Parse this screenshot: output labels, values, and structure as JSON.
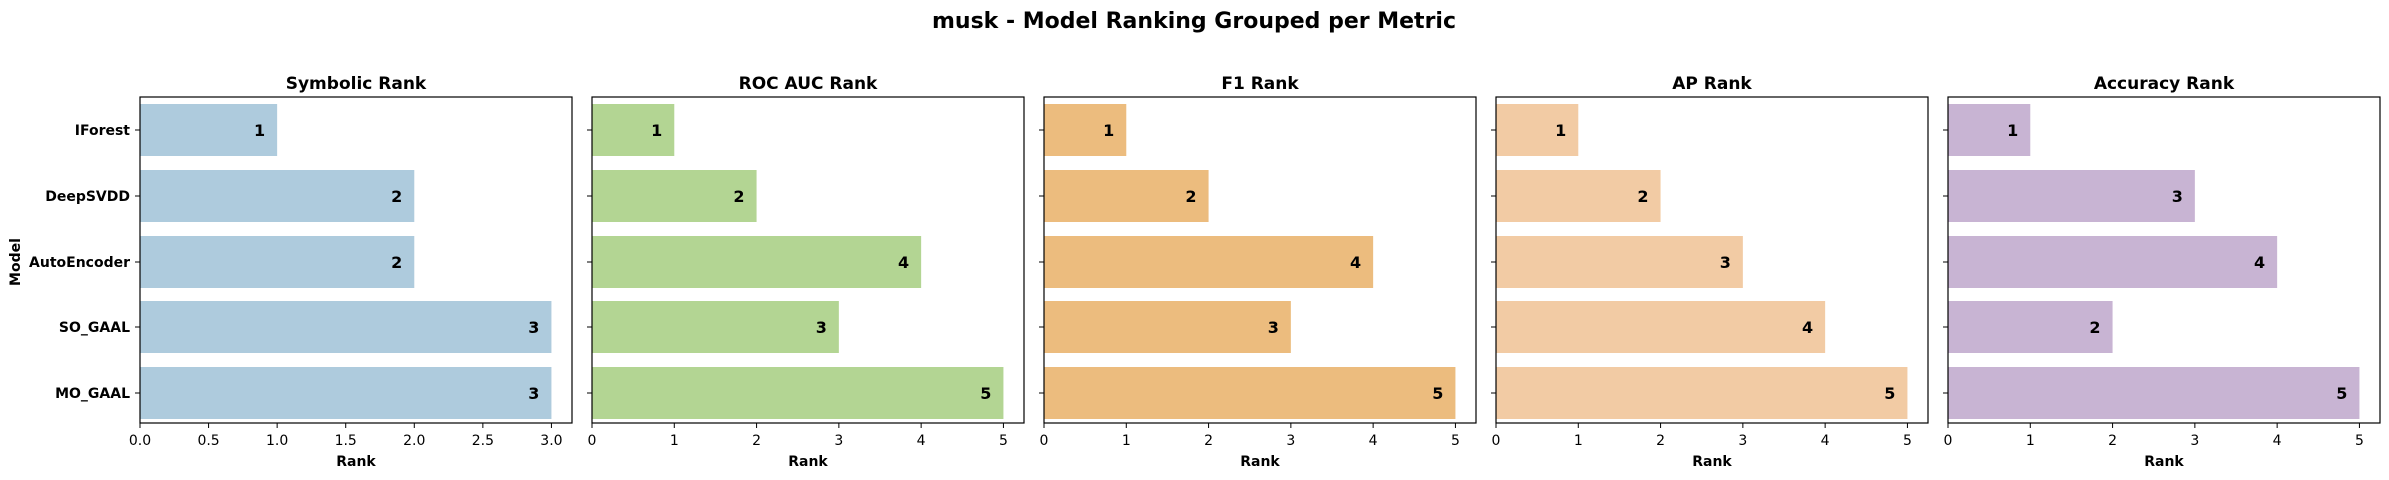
{
  "title": "musk - Model Ranking Grouped per Metric",
  "ylabel": "Model",
  "categories": [
    "IForest",
    "DeepSVDD",
    "AutoEncoder",
    "SO_GAAL",
    "MO_GAAL"
  ],
  "chart_data": [
    {
      "type": "bar",
      "orientation": "horizontal",
      "title": "Symbolic Rank",
      "xlabel": "Rank",
      "categories": [
        "IForest",
        "DeepSVDD",
        "AutoEncoder",
        "SO_GAAL",
        "MO_GAAL"
      ],
      "values": [
        1,
        2,
        2,
        3,
        3
      ],
      "xlim": [
        0,
        3.15
      ],
      "xticks": [
        0,
        0.5,
        1,
        1.5,
        2,
        2.5,
        3
      ],
      "xtick_labels": [
        "0.0",
        "0.5",
        "1.0",
        "1.5",
        "2.0",
        "2.5",
        "3.0"
      ],
      "color": "#aecbdd",
      "grid": false
    },
    {
      "type": "bar",
      "orientation": "horizontal",
      "title": "ROC AUC Rank",
      "xlabel": "Rank",
      "categories": [
        "IForest",
        "DeepSVDD",
        "AutoEncoder",
        "SO_GAAL",
        "MO_GAAL"
      ],
      "values": [
        1,
        2,
        4,
        3,
        5
      ],
      "xlim": [
        0,
        5.25
      ],
      "xticks": [
        0,
        1,
        2,
        3,
        4,
        5
      ],
      "xtick_labels": [
        "0",
        "1",
        "2",
        "3",
        "4",
        "5"
      ],
      "color": "#b3d593",
      "grid": false
    },
    {
      "type": "bar",
      "orientation": "horizontal",
      "title": "F1 Rank",
      "xlabel": "Rank",
      "categories": [
        "IForest",
        "DeepSVDD",
        "AutoEncoder",
        "SO_GAAL",
        "MO_GAAL"
      ],
      "values": [
        1,
        2,
        4,
        3,
        5
      ],
      "xlim": [
        0,
        5.25
      ],
      "xticks": [
        0,
        1,
        2,
        3,
        4,
        5
      ],
      "xtick_labels": [
        "0",
        "1",
        "2",
        "3",
        "4",
        "5"
      ],
      "color": "#ecbc7e",
      "grid": false
    },
    {
      "type": "bar",
      "orientation": "horizontal",
      "title": "AP Rank",
      "xlabel": "Rank",
      "categories": [
        "IForest",
        "DeepSVDD",
        "AutoEncoder",
        "SO_GAAL",
        "MO_GAAL"
      ],
      "values": [
        1,
        2,
        3,
        4,
        5
      ],
      "xlim": [
        0,
        5.25
      ],
      "xticks": [
        0,
        1,
        2,
        3,
        4,
        5
      ],
      "xtick_labels": [
        "0",
        "1",
        "2",
        "3",
        "4",
        "5"
      ],
      "color": "#f2cba4",
      "grid": false
    },
    {
      "type": "bar",
      "orientation": "horizontal",
      "title": "Accuracy Rank",
      "xlabel": "Rank",
      "categories": [
        "IForest",
        "DeepSVDD",
        "AutoEncoder",
        "SO_GAAL",
        "MO_GAAL"
      ],
      "values": [
        1,
        3,
        4,
        2,
        5
      ],
      "xlim": [
        0,
        5.25
      ],
      "xticks": [
        0,
        1,
        2,
        3,
        4,
        5
      ],
      "xtick_labels": [
        "0",
        "1",
        "2",
        "3",
        "4",
        "5"
      ],
      "color": "#c8b4d3",
      "grid": false
    }
  ]
}
